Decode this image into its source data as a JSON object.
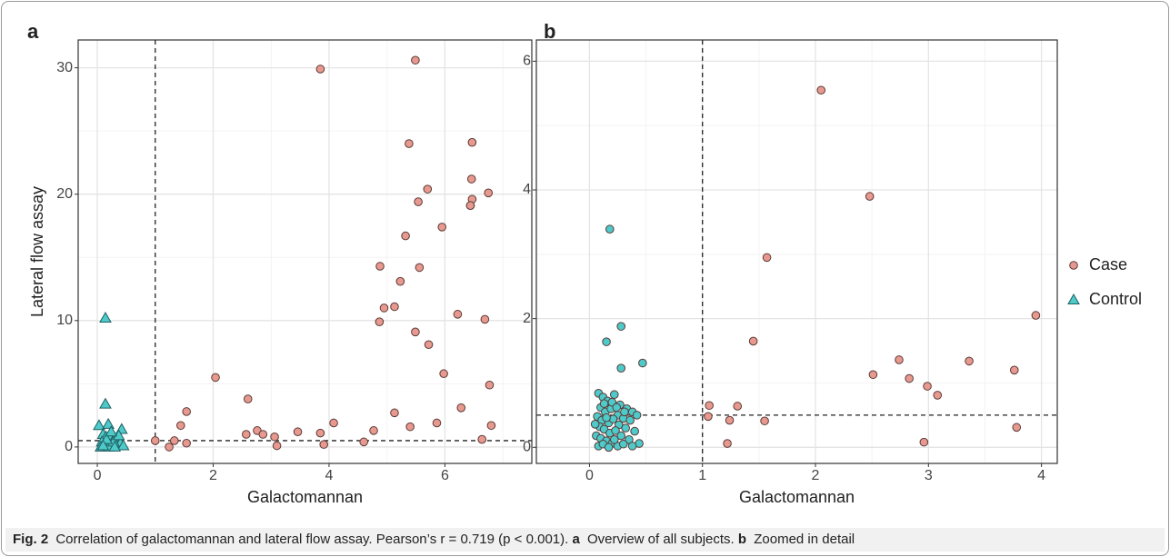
{
  "chart_data": [
    {
      "type": "scatter",
      "panel_label": "a",
      "x_label": "Galactomannan",
      "y_label": "Lateral flow assay",
      "xlim": [
        -0.33,
        7.5
      ],
      "ylim": [
        -1.3,
        32.2
      ],
      "xticks": [
        0,
        2,
        4,
        6
      ],
      "yticks": [
        0,
        10,
        20,
        30
      ],
      "grid": true,
      "reference_lines": {
        "x": 1,
        "y": 0.5
      },
      "series": [
        {
          "name": "Case",
          "color": "#e8998f",
          "marker": "circle",
          "x": [
            1.0,
            1.24,
            1.33,
            1.44,
            1.54,
            1.54,
            2.04,
            2.6,
            2.57,
            2.76,
            2.86,
            3.06,
            3.1,
            3.46,
            3.85,
            3.85,
            3.91,
            4.08,
            4.6,
            4.77,
            4.88,
            4.87,
            4.95,
            5.13,
            5.13,
            5.23,
            5.32,
            5.38,
            5.4,
            5.49,
            5.49,
            5.56,
            5.54,
            5.7,
            5.72,
            5.86,
            5.95,
            5.98,
            6.22,
            6.28,
            6.44,
            6.47,
            6.46,
            6.47,
            6.44,
            6.64,
            6.75,
            6.77,
            6.8,
            6.69
          ],
          "values": [
            0.5,
            0,
            0.5,
            1.7,
            2.8,
            0.3,
            5.5,
            3.8,
            1.0,
            1.3,
            1.0,
            0.8,
            0.1,
            1.2,
            29.9,
            1.1,
            0.2,
            1.9,
            0.4,
            1.3,
            14.3,
            9.9,
            11.0,
            11.1,
            2.7,
            13.1,
            16.7,
            24.0,
            1.6,
            30.6,
            9.1,
            14.2,
            19.4,
            20.4,
            8.1,
            1.9,
            17.4,
            5.8,
            10.5,
            3.1,
            19.1,
            24.1,
            21.2,
            19.6,
            19.1,
            0.6,
            20.1,
            4.9,
            1.7,
            10.1
          ]
        },
        {
          "name": "Control",
          "color": "#4ecaca",
          "marker": "triangle",
          "x": [
            0.14,
            0.14,
            0.03,
            0.19,
            0.42,
            0.1,
            0.15,
            0.22,
            0.3,
            0.35,
            0.08,
            0.12,
            0.18,
            0.25,
            0.33,
            0.4,
            0.06,
            0.2,
            0.28,
            0.37,
            0.45,
            0.16,
            0.24,
            0.1,
            0.3
          ],
          "values": [
            10.2,
            3.4,
            1.7,
            1.8,
            1.4,
            1.0,
            0.8,
            0.9,
            0.7,
            0.5,
            0.4,
            0.2,
            0.3,
            0.1,
            0.2,
            0.3,
            0.0,
            0.0,
            0.4,
            0.9,
            0.1,
            0.6,
            1.2,
            0.1,
            0.0
          ]
        }
      ]
    },
    {
      "type": "scatter",
      "panel_label": "b",
      "x_label": "Galactomannan",
      "xlim": [
        -0.47,
        4.14
      ],
      "ylim": [
        -0.25,
        6.33
      ],
      "xticks": [
        0,
        1,
        2,
        3,
        4
      ],
      "yticks": [
        0,
        2,
        4,
        6
      ],
      "grid": true,
      "reference_lines": {
        "x": 1,
        "y": 0.5
      },
      "series": [
        {
          "name": "Case",
          "color": "#e8998f",
          "marker": "circle",
          "x": [
            1.06,
            1.05,
            1.24,
            1.22,
            1.31,
            1.45,
            1.55,
            1.57,
            2.05,
            2.48,
            2.51,
            2.74,
            2.83,
            2.96,
            2.99,
            3.08,
            3.36,
            3.76,
            3.78,
            3.95
          ],
          "values": [
            0.65,
            0.48,
            0.42,
            0.06,
            0.64,
            1.65,
            0.41,
            2.95,
            5.55,
            3.9,
            1.13,
            1.36,
            1.07,
            0.08,
            0.95,
            0.81,
            1.34,
            1.2,
            0.31,
            2.05
          ]
        },
        {
          "name": "Control",
          "color": "#4ecaca",
          "marker": "circle",
          "x": [
            0.18,
            0.15,
            0.28,
            0.28,
            0.47,
            0.08,
            0.12,
            0.16,
            0.22,
            0.27,
            0.33,
            0.38,
            0.42,
            0.1,
            0.14,
            0.19,
            0.25,
            0.3,
            0.36,
            0.07,
            0.11,
            0.17,
            0.21,
            0.26,
            0.32,
            0.4,
            0.09,
            0.13,
            0.18,
            0.23,
            0.28,
            0.35,
            0.44,
            0.06,
            0.1,
            0.15,
            0.2,
            0.25,
            0.3,
            0.08,
            0.12,
            0.17,
            0.22,
            0.38,
            0.05,
            0.2,
            0.15,
            0.31,
            0.24,
            0.13
          ],
          "values": [
            3.39,
            1.64,
            1.88,
            1.23,
            1.31,
            0.84,
            0.78,
            0.72,
            0.82,
            0.66,
            0.6,
            0.55,
            0.5,
            0.62,
            0.55,
            0.6,
            0.5,
            0.45,
            0.42,
            0.48,
            0.42,
            0.38,
            0.44,
            0.35,
            0.3,
            0.25,
            0.32,
            0.28,
            0.22,
            0.26,
            0.18,
            0.12,
            0.06,
            0.18,
            0.14,
            0.1,
            0.06,
            0.02,
            0.05,
            0.02,
            0.05,
            0.0,
            0.12,
            0.02,
            0.36,
            0.7,
            0.46,
            0.55,
            0.62,
            0.68
          ]
        }
      ]
    }
  ],
  "caption": {
    "label": "Fig. 2",
    "text": "Correlation of galactomannan and lateral flow assay. Pearson’s r = 0.719 (p < 0.001).",
    "parts": [
      {
        "label": "a",
        "text": "Overview of all subjects."
      },
      {
        "label": "b",
        "text": "Zoomed in detail"
      }
    ]
  }
}
